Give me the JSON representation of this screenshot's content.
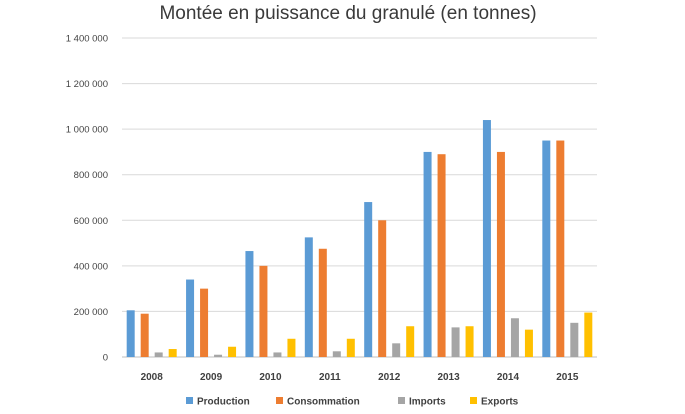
{
  "chart_data": {
    "type": "bar",
    "title": "Montée en puissance du granulé (en tonnes)",
    "xlabel": "",
    "ylabel": "",
    "categories": [
      "2008",
      "2009",
      "2010",
      "2011",
      "2012",
      "2013",
      "2014",
      "2015"
    ],
    "ylim": [
      0,
      1400000
    ],
    "yticks": [
      0,
      200000,
      400000,
      600000,
      800000,
      1000000,
      1200000,
      1400000
    ],
    "ytick_labels": [
      "0",
      "200 000",
      "400 000",
      "600 000",
      "800 000",
      "1 000 000",
      "1 200 000",
      "1 400 000"
    ],
    "grid": true,
    "legend_position": "bottom",
    "series": [
      {
        "name": "Production",
        "color": "#5b9bd5",
        "values": [
          205000,
          340000,
          465000,
          525000,
          680000,
          900000,
          1040000,
          950000
        ]
      },
      {
        "name": "Consommation",
        "color": "#ed7d31",
        "values": [
          190000,
          300000,
          400000,
          475000,
          600000,
          890000,
          900000,
          950000
        ]
      },
      {
        "name": "Imports",
        "color": "#a5a5a5",
        "values": [
          20000,
          10000,
          20000,
          25000,
          60000,
          130000,
          170000,
          150000
        ]
      },
      {
        "name": "Exports",
        "color": "#ffc000",
        "values": [
          35000,
          45000,
          80000,
          80000,
          135000,
          135000,
          120000,
          195000
        ]
      }
    ]
  }
}
